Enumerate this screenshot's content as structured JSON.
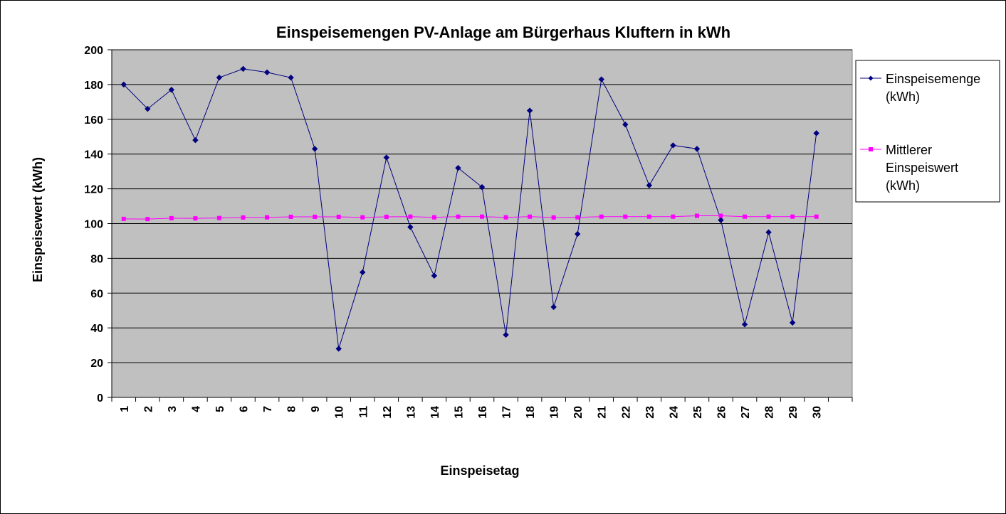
{
  "chart_data": {
    "type": "line",
    "title": "Einspeisemengen PV-Anlage am Bürgerhaus Kluftern in kWh",
    "xlabel": "Einspeisetag",
    "ylabel": "Einspeisewert (kWh)",
    "ylim": [
      0,
      200
    ],
    "y_ticks": [
      "0",
      "20",
      "40",
      "60",
      "80",
      "100",
      "120",
      "140",
      "160",
      "180",
      "200"
    ],
    "categories": [
      "1",
      "2",
      "3",
      "4",
      "5",
      "6",
      "7",
      "8",
      "9",
      "10",
      "11",
      "12",
      "13",
      "14",
      "15",
      "16",
      "17",
      "18",
      "19",
      "20",
      "21",
      "22",
      "23",
      "24",
      "25",
      "26",
      "27",
      "28",
      "29",
      "30"
    ],
    "grid": "horizontal",
    "plot_background": "#c0c0c0",
    "legend_position": "right",
    "series": [
      {
        "legend_lines": [
          "Einspeisemenge",
          "(kWh)"
        ],
        "color": "#000080",
        "marker": "diamond",
        "values": [
          180,
          166,
          177,
          148,
          184,
          189,
          187,
          184,
          143,
          28,
          72,
          138,
          98,
          70,
          132,
          121,
          36,
          165,
          52,
          94,
          183,
          157,
          122,
          145,
          143,
          102,
          42,
          95,
          43,
          152
        ]
      },
      {
        "legend_lines": [
          "Mittlerer",
          "Einspeiswert",
          "(kWh)"
        ],
        "color": "#ff00ff",
        "marker": "square",
        "values": [
          102.7,
          102.6,
          103.1,
          103.0,
          103.2,
          103.5,
          103.6,
          103.9,
          103.9,
          103.9,
          103.6,
          103.9,
          104.0,
          103.6,
          104.0,
          104.0,
          103.6,
          104.0,
          103.5,
          103.6,
          104.0,
          104.0,
          104.0,
          104.0,
          104.5,
          104.5,
          104.0,
          104.0,
          104.0,
          104.0
        ]
      }
    ]
  }
}
